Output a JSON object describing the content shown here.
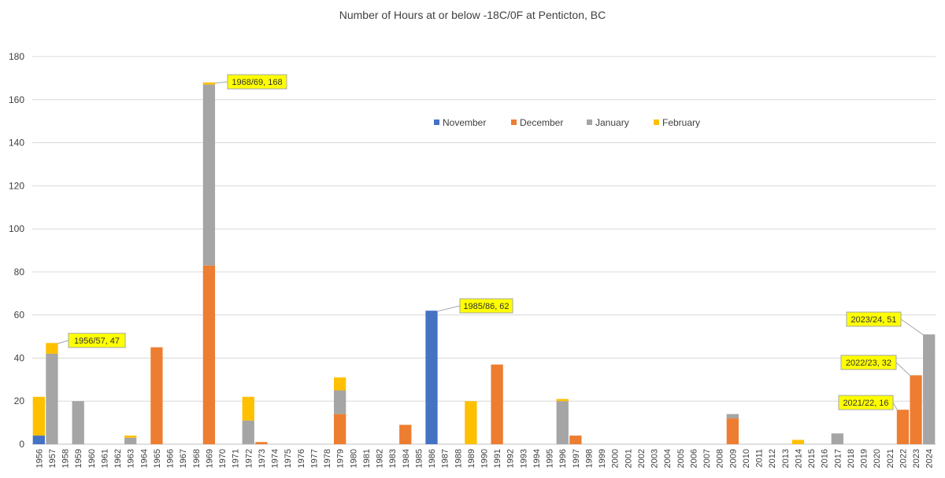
{
  "chart_data": {
    "type": "bar",
    "stacked": true,
    "title": "Number of Hours at or below -18C/0F at Penticton, BC",
    "xlabel": "",
    "ylabel": "",
    "ylim": [
      0,
      180
    ],
    "yticks": [
      0,
      20,
      40,
      60,
      80,
      100,
      120,
      140,
      160,
      180
    ],
    "grid": true,
    "legend_position": "top-center",
    "categories": [
      "1956",
      "1957",
      "1958",
      "1959",
      "1960",
      "1961",
      "1962",
      "1963",
      "1964",
      "1965",
      "1966",
      "1967",
      "1968",
      "1969",
      "1970",
      "1971",
      "1972",
      "1973",
      "1974",
      "1975",
      "1976",
      "1977",
      "1978",
      "1979",
      "1980",
      "1981",
      "1982",
      "1983",
      "1984",
      "1985",
      "1986",
      "1987",
      "1988",
      "1989",
      "1990",
      "1991",
      "1992",
      "1993",
      "1994",
      "1995",
      "1996",
      "1997",
      "1998",
      "1999",
      "2000",
      "2001",
      "2002",
      "2003",
      "2004",
      "2005",
      "2006",
      "2007",
      "2008",
      "2009",
      "2010",
      "2011",
      "2012",
      "2013",
      "2014",
      "2015",
      "2016",
      "2017",
      "2018",
      "2019",
      "2020",
      "2021",
      "2022",
      "2023",
      "2024"
    ],
    "series": [
      {
        "name": "November",
        "color": "#4472C4",
        "values": [
          4,
          0,
          0,
          0,
          0,
          0,
          0,
          0,
          0,
          0,
          0,
          0,
          0,
          0,
          0,
          0,
          0,
          0,
          0,
          0,
          0,
          0,
          0,
          0,
          0,
          0,
          0,
          0,
          0,
          0,
          62,
          0,
          0,
          0,
          0,
          0,
          0,
          0,
          0,
          0,
          0,
          0,
          0,
          0,
          0,
          0,
          0,
          0,
          0,
          0,
          0,
          0,
          0,
          0,
          0,
          0,
          0,
          0,
          0,
          0,
          0,
          0,
          0,
          0,
          0,
          0,
          0,
          0,
          0
        ]
      },
      {
        "name": "December",
        "color": "#ED7D31",
        "values": [
          0,
          0,
          0,
          0,
          0,
          0,
          0,
          0,
          0,
          45,
          0,
          0,
          0,
          83,
          0,
          0,
          0,
          1,
          0,
          0,
          0,
          0,
          0,
          14,
          0,
          0,
          0,
          0,
          9,
          0,
          0,
          0,
          0,
          0,
          0,
          37,
          0,
          0,
          0,
          0,
          0,
          4,
          0,
          0,
          0,
          0,
          0,
          0,
          0,
          0,
          0,
          0,
          0,
          12,
          0,
          0,
          0,
          0,
          0,
          0,
          0,
          0,
          0,
          0,
          0,
          0,
          16,
          32,
          0
        ]
      },
      {
        "name": "January",
        "color": "#A5A5A5",
        "values": [
          0,
          42,
          0,
          20,
          0,
          0,
          0,
          3,
          0,
          0,
          0,
          0,
          0,
          84,
          0,
          0,
          11,
          0,
          0,
          0,
          0,
          0,
          0,
          11,
          0,
          0,
          0,
          0,
          0,
          0,
          0,
          0,
          0,
          0,
          0,
          0,
          0,
          0,
          0,
          0,
          20,
          0,
          0,
          0,
          0,
          0,
          0,
          0,
          0,
          0,
          0,
          0,
          0,
          2,
          0,
          0,
          0,
          0,
          0,
          0,
          0,
          5,
          0,
          0,
          0,
          0,
          0,
          0,
          51
        ]
      },
      {
        "name": "February",
        "color": "#FFC000",
        "values": [
          18,
          5,
          0,
          0,
          0,
          0,
          0,
          1,
          0,
          0,
          0,
          0,
          0,
          1,
          0,
          0,
          11,
          0,
          0,
          0,
          0,
          0,
          0,
          6,
          0,
          0,
          0,
          0,
          0,
          0,
          0,
          0,
          0,
          20,
          0,
          0,
          0,
          0,
          0,
          0,
          1,
          0,
          0,
          0,
          0,
          0,
          0,
          0,
          0,
          0,
          0,
          0,
          0,
          0,
          0,
          0,
          0,
          0,
          2,
          0,
          0,
          0,
          0,
          0,
          0,
          0,
          0,
          0,
          0
        ]
      }
    ],
    "annotations": [
      {
        "index": 1,
        "text": "1956/57, 47"
      },
      {
        "index": 13,
        "text": "1968/69, 168"
      },
      {
        "index": 30,
        "text": "1985/86, 62"
      },
      {
        "index": 66,
        "text": "2021/22, 16"
      },
      {
        "index": 67,
        "text": "2022/23, 32"
      },
      {
        "index": 68,
        "text": "2023/24, 51"
      }
    ]
  }
}
